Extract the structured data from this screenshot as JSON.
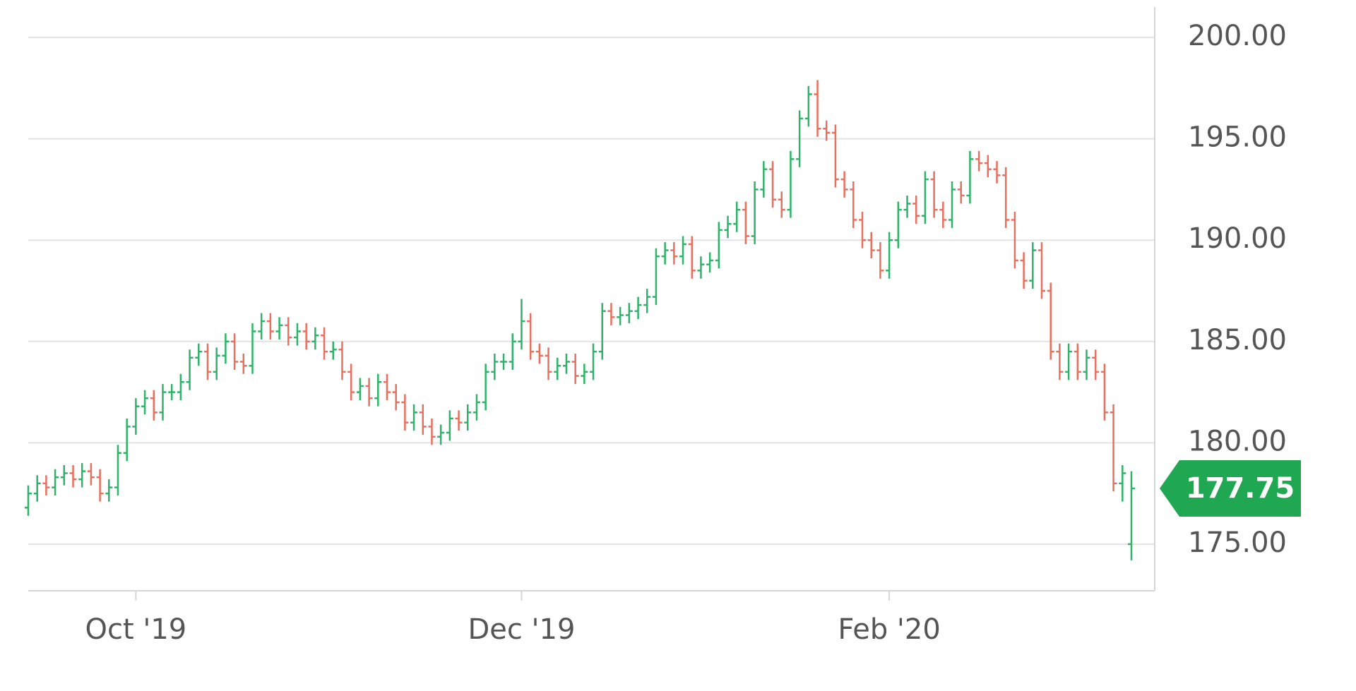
{
  "chart_data": {
    "type": "ohlc",
    "categories": [
      null,
      null,
      null,
      null,
      null,
      null,
      null,
      null,
      null,
      null,
      null,
      null,
      null,
      null,
      null,
      null,
      null,
      null,
      null,
      null,
      null,
      null,
      null,
      null,
      null,
      null,
      null,
      null,
      null,
      null,
      null,
      null,
      null,
      null,
      null,
      null,
      null,
      null,
      null,
      null,
      null,
      null,
      null,
      null,
      null,
      null,
      null,
      null,
      null,
      null,
      null,
      null,
      null,
      null,
      null,
      null,
      null,
      null,
      null,
      null,
      null,
      null,
      null,
      null,
      null,
      null,
      null,
      null,
      null,
      null,
      null,
      null,
      null,
      null,
      null,
      null,
      null,
      null,
      null,
      null,
      null,
      null,
      null,
      null,
      null,
      null,
      null,
      null,
      null,
      null,
      null,
      null,
      null,
      null,
      null,
      null,
      null,
      null,
      null,
      null,
      null,
      null,
      null,
      null,
      null,
      null,
      null,
      null,
      null,
      null,
      null,
      null,
      null,
      null,
      null,
      null,
      null,
      null,
      null,
      null,
      null,
      null,
      null,
      null
    ],
    "open": [
      176.8,
      177.5,
      178,
      177.8,
      178.3,
      178.5,
      178.2,
      178.6,
      178.3,
      177.5,
      177.8,
      179.5,
      180.8,
      181.8,
      182.2,
      181.5,
      182.5,
      182.5,
      183,
      184.2,
      184.5,
      183.5,
      184.3,
      185,
      184,
      183.8,
      185.5,
      186,
      185.5,
      185.8,
      185.2,
      185.5,
      185,
      185.3,
      184.5,
      184.6,
      183.5,
      182.5,
      182.8,
      182.2,
      183,
      182.5,
      182,
      181,
      181.5,
      180.8,
      180.3,
      180.5,
      181.2,
      181,
      181.5,
      182,
      183.5,
      184,
      184,
      185,
      186,
      184.5,
      184.3,
      183.5,
      183.8,
      184,
      183.3,
      183.5,
      184.5,
      186.5,
      186.2,
      186.3,
      186.5,
      186.8,
      187.2,
      189.2,
      189.5,
      189.2,
      189.8,
      188.5,
      188.8,
      189,
      190.5,
      190.8,
      191.5,
      190.2,
      192.5,
      193.5,
      192,
      191.5,
      194,
      196,
      197.2,
      195.5,
      195.3,
      193,
      192.5,
      191,
      190,
      189.5,
      188.5,
      190,
      191.5,
      191.8,
      191.2,
      193,
      191.5,
      191,
      192.5,
      192.2,
      194,
      193.8,
      193.5,
      193.2,
      191,
      189,
      188,
      189.5,
      187.5,
      184.5,
      183.5,
      184.5,
      183.5,
      184.2,
      183.5,
      181.5,
      178,
      175
    ],
    "high": [
      177.9,
      178.4,
      178.4,
      178.7,
      178.9,
      178.9,
      179,
      179,
      178.7,
      178.2,
      179.9,
      181.2,
      182.2,
      182.6,
      182.6,
      182.9,
      182.9,
      183.4,
      184.6,
      184.9,
      184.9,
      184.7,
      185.4,
      185.4,
      184.4,
      185.9,
      186.4,
      186.4,
      186.2,
      186.2,
      185.9,
      185.9,
      185.7,
      185.7,
      185,
      185,
      183.9,
      183.2,
      183.2,
      183.4,
      183.4,
      182.9,
      182.4,
      181.9,
      181.9,
      181.2,
      180.9,
      181.6,
      181.6,
      181.9,
      182.4,
      183.9,
      184.4,
      184.4,
      185.4,
      187.1,
      186.4,
      184.9,
      184.7,
      184.2,
      184.4,
      184.4,
      183.9,
      184.9,
      186.9,
      186.9,
      186.7,
      186.9,
      187.2,
      187.6,
      189.6,
      189.9,
      189.9,
      190.2,
      190.2,
      189.2,
      189.4,
      190.9,
      191.2,
      191.9,
      191.9,
      192.9,
      193.9,
      193.9,
      192.4,
      194.4,
      196.4,
      197.6,
      197.9,
      195.9,
      195.7,
      193.4,
      192.9,
      191.4,
      190.4,
      189.9,
      190.4,
      191.9,
      192.2,
      192.2,
      193.4,
      193.4,
      191.9,
      192.9,
      192.9,
      194.4,
      194.4,
      194.2,
      193.9,
      193.6,
      191.4,
      189.4,
      189.9,
      189.9,
      187.9,
      184.9,
      184.9,
      184.9,
      184.6,
      184.6,
      183.9,
      181.9,
      178.9,
      178.6
    ],
    "low": [
      176.4,
      177.1,
      177.4,
      177.4,
      177.9,
      177.8,
      177.8,
      177.9,
      177.1,
      177.1,
      177.4,
      179.1,
      180.4,
      181.4,
      181.1,
      181.1,
      182.1,
      182.1,
      182.6,
      183.8,
      183.1,
      183.1,
      183.9,
      183.6,
      183.4,
      183.4,
      185.1,
      185.1,
      185.1,
      184.8,
      184.8,
      184.6,
      184.6,
      184.1,
      184.1,
      183.1,
      182.1,
      182.1,
      181.8,
      181.8,
      182.1,
      181.6,
      180.6,
      180.6,
      180.4,
      179.9,
      179.9,
      180.1,
      180.6,
      180.6,
      181.1,
      181.6,
      183.1,
      183.6,
      183.6,
      184.6,
      184.1,
      183.9,
      183.1,
      183.1,
      183.4,
      182.9,
      182.9,
      183.1,
      184.1,
      185.8,
      185.8,
      185.9,
      186.1,
      186.4,
      186.8,
      188.8,
      188.8,
      188.8,
      188.1,
      188.1,
      188.4,
      188.6,
      190.1,
      190.4,
      189.8,
      189.8,
      192.1,
      191.6,
      191.1,
      191.1,
      193.6,
      195.6,
      195.1,
      194.9,
      192.6,
      192.1,
      190.6,
      189.6,
      189.1,
      188.1,
      188.1,
      189.6,
      191.1,
      190.8,
      190.8,
      191.1,
      190.6,
      190.6,
      191.8,
      191.8,
      193.4,
      193.1,
      192.8,
      190.6,
      188.6,
      187.6,
      187.6,
      187.1,
      184.1,
      183.1,
      183.1,
      183.1,
      183.1,
      183.1,
      181.1,
      177.6,
      177.1,
      174.2
    ],
    "close": [
      177.5,
      178,
      177.8,
      178.3,
      178.5,
      178.2,
      178.6,
      178.3,
      177.5,
      177.8,
      179.5,
      180.8,
      181.8,
      182.2,
      181.5,
      182.5,
      182.5,
      183,
      184.2,
      184.5,
      183.5,
      184.3,
      185,
      184,
      183.8,
      185.5,
      186,
      185.5,
      185.8,
      185.2,
      185.5,
      185,
      185.3,
      184.5,
      184.6,
      183.5,
      182.5,
      182.8,
      182.2,
      183,
      182.5,
      182,
      181,
      181.5,
      180.8,
      180.3,
      180.5,
      181.2,
      181,
      181.5,
      182,
      183.5,
      184,
      184,
      185,
      186,
      184.5,
      184.3,
      183.5,
      183.8,
      184,
      183.3,
      183.5,
      184.5,
      186.5,
      186.2,
      186.3,
      186.5,
      186.8,
      187.2,
      189.2,
      189.5,
      189.2,
      189.8,
      188.5,
      188.8,
      189,
      190.5,
      190.8,
      191.5,
      190.2,
      192.5,
      193.5,
      192,
      191.5,
      194,
      196,
      197.2,
      195.5,
      195.3,
      193,
      192.5,
      191,
      190,
      189.5,
      188.5,
      190,
      191.5,
      191.8,
      191.2,
      193,
      191.5,
      191,
      192.5,
      192.2,
      194,
      193.8,
      193.5,
      193.2,
      191,
      189,
      188,
      189.5,
      187.5,
      184.5,
      183.5,
      184.5,
      183.5,
      184.2,
      183.5,
      181.5,
      178,
      178.5,
      177.75
    ],
    "up_color": "#2fb36a",
    "down_color": "#e8705e",
    "last_tag_color": "#1fa851",
    "ylim": [
      172.7,
      201.5
    ],
    "yticks": [
      {
        "value": 175,
        "label": "175.00"
      },
      {
        "value": 180,
        "label": "180.00"
      },
      {
        "value": 185,
        "label": "185.00"
      },
      {
        "value": 190,
        "label": "190.00"
      },
      {
        "value": 195,
        "label": "195.00"
      },
      {
        "value": 200,
        "label": "200.00"
      }
    ],
    "xticks": [
      {
        "value": 12,
        "label": "Oct '19"
      },
      {
        "value": 55,
        "label": "Dec '19"
      },
      {
        "value": 96,
        "label": "Feb '20"
      }
    ],
    "grid": true
  }
}
